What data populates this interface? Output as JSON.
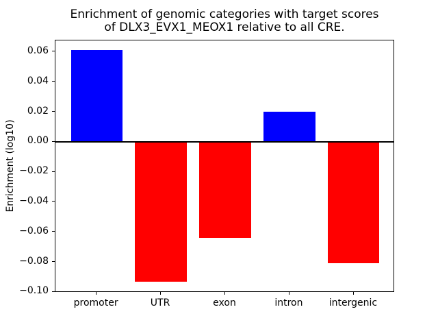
{
  "chart_data": {
    "type": "bar",
    "title_line1": "Enrichment of genomic categories with target scores",
    "title_line2": "of DLX3_EVX1_MEOX1 relative to all CRE.",
    "ylabel": "Enrichment (log10)",
    "xlabel": "",
    "categories": [
      "promoter",
      "UTR",
      "exon",
      "intron",
      "intergenic"
    ],
    "values": [
      0.061,
      -0.093,
      -0.064,
      0.02,
      -0.081
    ],
    "bar_colors": [
      "#0000ff",
      "#ff0000",
      "#ff0000",
      "#0000ff",
      "#ff0000"
    ],
    "positive_color": "#0000ff",
    "negative_color": "#ff0000",
    "bar_width": 0.8,
    "ylim": [
      -0.1005,
      0.0675
    ],
    "xlim": [
      -0.64,
      4.64
    ],
    "ytick_values": [
      0.06,
      0.04,
      0.02,
      0.0,
      -0.02,
      -0.04,
      -0.06,
      -0.08,
      -0.1
    ],
    "ytick_labels": [
      "0.06",
      "0.04",
      "0.02",
      "0.00",
      "−0.02",
      "−0.04",
      "−0.06",
      "−0.08",
      "−0.10"
    ],
    "grid": false,
    "legend": false,
    "zero_line": true,
    "axis_color": "#000000",
    "background": "#ffffff"
  }
}
